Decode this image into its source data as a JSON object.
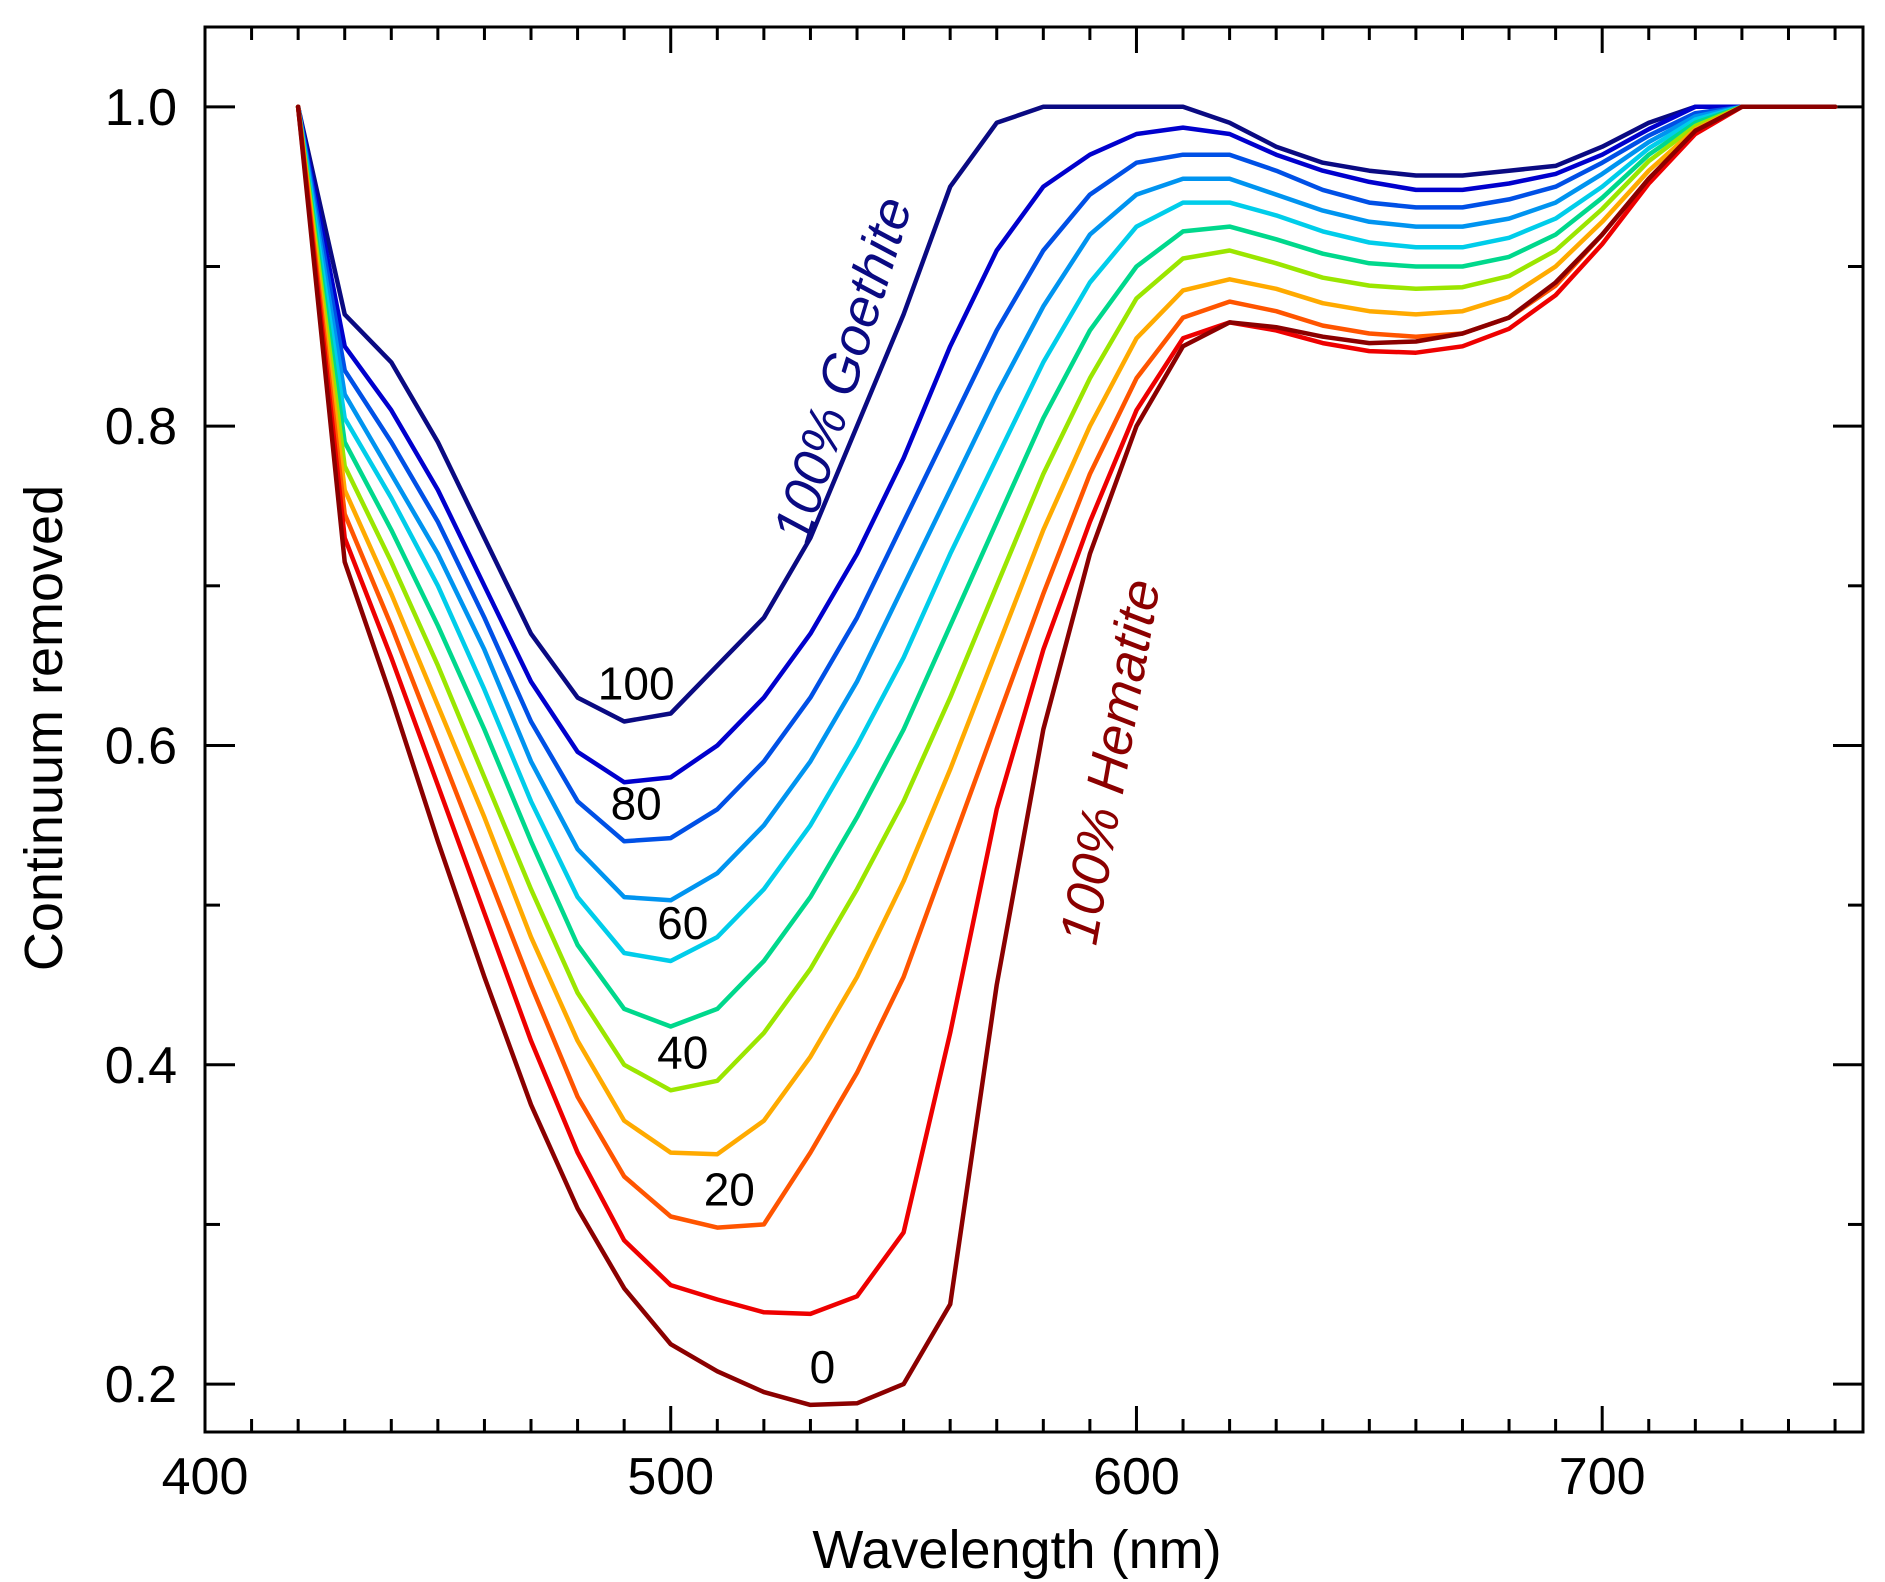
{
  "chart_data": {
    "type": "line",
    "xlabel": "Wavelength (nm)",
    "ylabel": "Continuum removed",
    "xlim": [
      400,
      756
    ],
    "ylim": [
      0.17,
      1.05
    ],
    "x_ticks": [
      {
        "value": 400,
        "label": "400"
      },
      {
        "value": 500,
        "label": "500"
      },
      {
        "value": 600,
        "label": "600"
      },
      {
        "value": 700,
        "label": "700"
      }
    ],
    "y_ticks": [
      {
        "value": 0.2,
        "label": "0.2"
      },
      {
        "value": 0.4,
        "label": "0.4"
      },
      {
        "value": 0.6,
        "label": "0.6"
      },
      {
        "value": 0.8,
        "label": "0.8"
      },
      {
        "value": 1.0,
        "label": "1.0"
      }
    ],
    "grid": false,
    "legend": "none",
    "x": [
      420,
      430,
      440,
      450,
      460,
      470,
      480,
      490,
      500,
      510,
      520,
      530,
      540,
      550,
      560,
      570,
      580,
      590,
      600,
      610,
      620,
      630,
      640,
      650,
      660,
      670,
      680,
      690,
      700,
      710,
      720,
      730,
      740,
      750
    ],
    "series": [
      {
        "goethite_pct": 100,
        "label": "100",
        "color": "#0a0a82",
        "values": [
          1.0,
          0.87,
          0.84,
          0.79,
          0.73,
          0.67,
          0.63,
          0.615,
          0.62,
          0.65,
          0.68,
          0.73,
          0.8,
          0.87,
          0.95,
          0.99,
          1.0,
          1.0,
          1.0,
          1.0,
          0.99,
          0.975,
          0.965,
          0.96,
          0.957,
          0.957,
          0.96,
          0.963,
          0.975,
          0.99,
          1.0,
          1.0,
          1.0,
          1.0
        ]
      },
      {
        "goethite_pct": 90,
        "label": "",
        "color": "#0000cd",
        "values": [
          1.0,
          0.85,
          0.81,
          0.76,
          0.7,
          0.64,
          0.596,
          0.577,
          0.58,
          0.6,
          0.63,
          0.67,
          0.72,
          0.78,
          0.85,
          0.91,
          0.95,
          0.97,
          0.983,
          0.987,
          0.983,
          0.97,
          0.96,
          0.953,
          0.948,
          0.948,
          0.952,
          0.958,
          0.97,
          0.986,
          1.0,
          1.0,
          1.0,
          1.0
        ]
      },
      {
        "goethite_pct": 80,
        "label": "80",
        "color": "#0050e6",
        "values": [
          1.0,
          0.835,
          0.79,
          0.74,
          0.68,
          0.615,
          0.565,
          0.54,
          0.542,
          0.56,
          0.59,
          0.63,
          0.68,
          0.74,
          0.8,
          0.86,
          0.91,
          0.945,
          0.965,
          0.97,
          0.97,
          0.96,
          0.948,
          0.94,
          0.937,
          0.937,
          0.942,
          0.95,
          0.965,
          0.982,
          0.996,
          1.0,
          1.0,
          1.0
        ]
      },
      {
        "goethite_pct": 70,
        "label": "",
        "color": "#0094f0",
        "values": [
          1.0,
          0.82,
          0.77,
          0.72,
          0.66,
          0.59,
          0.535,
          0.505,
          0.503,
          0.52,
          0.55,
          0.59,
          0.64,
          0.7,
          0.76,
          0.82,
          0.875,
          0.92,
          0.945,
          0.955,
          0.955,
          0.945,
          0.935,
          0.928,
          0.925,
          0.925,
          0.93,
          0.94,
          0.958,
          0.978,
          0.994,
          1.0,
          1.0,
          1.0
        ]
      },
      {
        "goethite_pct": 60,
        "label": "60",
        "color": "#00cdea",
        "values": [
          1.0,
          0.805,
          0.755,
          0.7,
          0.635,
          0.565,
          0.505,
          0.47,
          0.465,
          0.48,
          0.51,
          0.55,
          0.6,
          0.655,
          0.72,
          0.78,
          0.84,
          0.89,
          0.925,
          0.94,
          0.94,
          0.932,
          0.922,
          0.915,
          0.912,
          0.912,
          0.918,
          0.93,
          0.95,
          0.974,
          0.992,
          1.0,
          1.0,
          1.0
        ]
      },
      {
        "goethite_pct": 50,
        "label": "",
        "color": "#00d88c",
        "values": [
          1.0,
          0.79,
          0.735,
          0.675,
          0.61,
          0.54,
          0.475,
          0.435,
          0.424,
          0.435,
          0.465,
          0.505,
          0.555,
          0.61,
          0.675,
          0.74,
          0.805,
          0.86,
          0.9,
          0.922,
          0.925,
          0.917,
          0.908,
          0.902,
          0.9,
          0.9,
          0.906,
          0.92,
          0.943,
          0.97,
          0.99,
          1.0,
          1.0,
          1.0
        ]
      },
      {
        "goethite_pct": 40,
        "label": "40",
        "color": "#9be600",
        "values": [
          1.0,
          0.775,
          0.715,
          0.65,
          0.58,
          0.51,
          0.445,
          0.4,
          0.384,
          0.39,
          0.42,
          0.46,
          0.51,
          0.565,
          0.63,
          0.7,
          0.77,
          0.83,
          0.88,
          0.905,
          0.91,
          0.902,
          0.893,
          0.888,
          0.886,
          0.887,
          0.894,
          0.91,
          0.936,
          0.966,
          0.988,
          1.0,
          1.0,
          1.0
        ]
      },
      {
        "goethite_pct": 30,
        "label": "",
        "color": "#ffaa00",
        "values": [
          1.0,
          0.76,
          0.695,
          0.625,
          0.555,
          0.48,
          0.415,
          0.365,
          0.345,
          0.344,
          0.365,
          0.405,
          0.455,
          0.515,
          0.585,
          0.66,
          0.735,
          0.8,
          0.855,
          0.885,
          0.892,
          0.886,
          0.877,
          0.872,
          0.87,
          0.872,
          0.881,
          0.9,
          0.928,
          0.96,
          0.986,
          1.0,
          1.0,
          1.0
        ]
      },
      {
        "goethite_pct": 20,
        "label": "20",
        "color": "#ff5500",
        "values": [
          1.0,
          0.745,
          0.675,
          0.6,
          0.525,
          0.45,
          0.38,
          0.33,
          0.305,
          0.298,
          0.3,
          0.345,
          0.395,
          0.455,
          0.535,
          0.615,
          0.695,
          0.77,
          0.83,
          0.868,
          0.878,
          0.872,
          0.863,
          0.858,
          0.856,
          0.858,
          0.868,
          0.888,
          0.92,
          0.955,
          0.984,
          1.0,
          1.0,
          1.0
        ]
      },
      {
        "goethite_pct": 10,
        "label": "",
        "color": "#ee0000",
        "values": [
          1.0,
          0.73,
          0.655,
          0.575,
          0.495,
          0.415,
          0.345,
          0.29,
          0.262,
          0.253,
          0.245,
          0.244,
          0.255,
          0.295,
          0.42,
          0.56,
          0.66,
          0.74,
          0.81,
          0.855,
          0.865,
          0.86,
          0.852,
          0.847,
          0.846,
          0.85,
          0.861,
          0.882,
          0.914,
          0.952,
          0.983,
          1.0,
          1.0,
          1.0
        ]
      },
      {
        "goethite_pct": 0,
        "label": "0",
        "color": "#8b0000",
        "values": [
          1.0,
          0.715,
          0.63,
          0.54,
          0.455,
          0.375,
          0.31,
          0.26,
          0.225,
          0.208,
          0.195,
          0.187,
          0.188,
          0.2,
          0.25,
          0.45,
          0.61,
          0.72,
          0.8,
          0.85,
          0.865,
          0.862,
          0.856,
          0.852,
          0.853,
          0.858,
          0.868,
          0.89,
          0.92,
          0.955,
          0.985,
          1.0,
          1.0,
          1.0
        ]
      }
    ],
    "annotations": [
      {
        "text": "100% Goethite",
        "color": "#0a0a82"
      },
      {
        "text": "100% Hematite",
        "color": "#8b0000"
      }
    ]
  }
}
